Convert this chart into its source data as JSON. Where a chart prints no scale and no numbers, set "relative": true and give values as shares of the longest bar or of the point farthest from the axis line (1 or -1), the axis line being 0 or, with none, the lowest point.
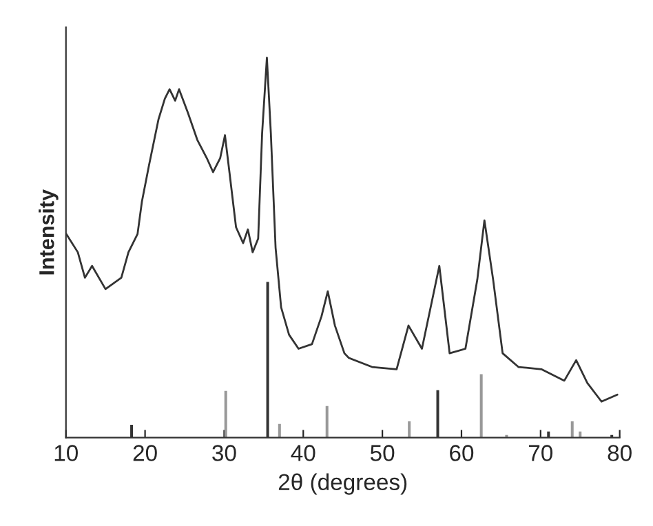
{
  "chart_data": {
    "type": "line",
    "xlabel": "2θ (degrees)",
    "ylabel": "Intensity",
    "relative": true,
    "xlim": [
      10,
      80
    ],
    "xticks": [
      10,
      20,
      30,
      40,
      50,
      60,
      70,
      80
    ],
    "grid": false,
    "legend": false,
    "series": [
      {
        "color": "#333333",
        "x": [
          10.05,
          11.5,
          12.4,
          13.3,
          15.0,
          17.0,
          17.9,
          19.05,
          19.6,
          20.5,
          21.7,
          22.5,
          23.1,
          23.8,
          24.3,
          25.4,
          26.6,
          27.8,
          28.6,
          29.5,
          30.1,
          30.7,
          31.5,
          32.4,
          33.0,
          33.6,
          34.3,
          34.8,
          35.4,
          35.9,
          36.5,
          37.2,
          38.2,
          39.4,
          41.1,
          42.3,
          43.1,
          44.0,
          45.2,
          45.75,
          48.7,
          51.8,
          53.3,
          55.0,
          57.2,
          58.5,
          60.5,
          62.0,
          62.9,
          64.0,
          65.2,
          67.2,
          70.1,
          73.0,
          74.5,
          75.9,
          77.7,
          79.7
        ],
        "values": [
          0.536,
          0.488,
          0.421,
          0.452,
          0.391,
          0.421,
          0.488,
          0.536,
          0.621,
          0.717,
          0.838,
          0.892,
          0.917,
          0.887,
          0.917,
          0.856,
          0.784,
          0.736,
          0.699,
          0.736,
          0.796,
          0.693,
          0.554,
          0.512,
          0.548,
          0.488,
          0.524,
          0.802,
          1.0,
          0.802,
          0.5,
          0.343,
          0.271,
          0.234,
          0.246,
          0.319,
          0.385,
          0.295,
          0.222,
          0.21,
          0.186,
          0.18,
          0.295,
          0.234,
          0.452,
          0.222,
          0.234,
          0.416,
          0.572,
          0.416,
          0.222,
          0.186,
          0.18,
          0.15,
          0.204,
          0.144,
          0.095,
          0.113
        ]
      },
      {
        "type": "bar",
        "x": [
          18.3,
          30.2,
          35.5,
          37.0,
          43.0,
          53.4,
          57.0,
          62.5,
          65.7,
          71.0,
          74.0,
          75.0,
          79.0
        ],
        "values": [
          0.034,
          0.123,
          0.41,
          0.036,
          0.083,
          0.043,
          0.125,
          0.167,
          0.007,
          0.016,
          0.043,
          0.016,
          0.007
        ],
        "colors": [
          "#333333",
          "#999999",
          "#333333",
          "#999999",
          "#999999",
          "#999999",
          "#333333",
          "#999999",
          "#999999",
          "#333333",
          "#999999",
          "#999999",
          "#333333"
        ]
      }
    ]
  }
}
